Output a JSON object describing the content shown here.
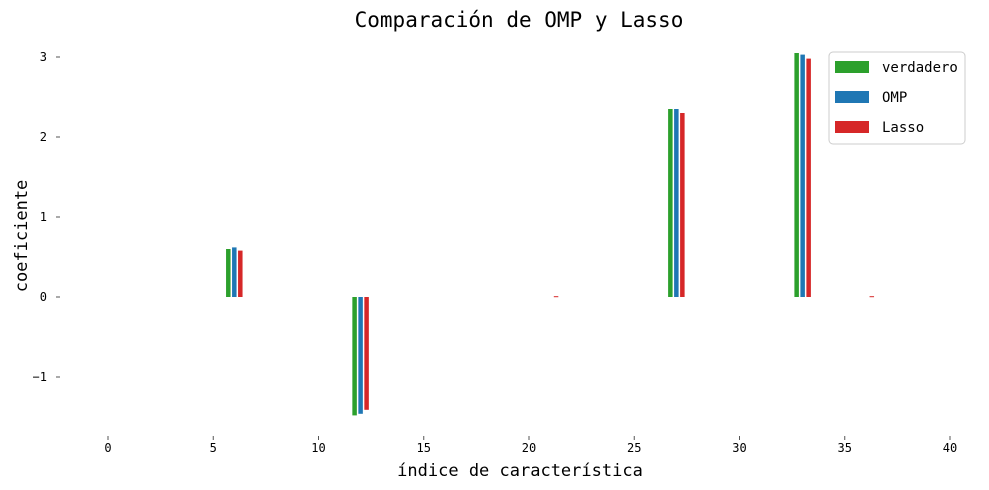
{
  "chart_data": {
    "type": "bar",
    "title": "Comparación de OMP y Lasso",
    "xlabel": "índice de característica",
    "ylabel": "coeficiente",
    "xlim": [
      -2,
      40
    ],
    "ylim": [
      -1.6,
      3.15
    ],
    "xticks": [
      0,
      5,
      10,
      15,
      20,
      25,
      30,
      35,
      40
    ],
    "yticks": [
      -1,
      0,
      1,
      2,
      3
    ],
    "ytick_labels": [
      "−1",
      "0",
      "1",
      "2",
      "3"
    ],
    "grid": false,
    "legend_position": "top-right",
    "series": [
      {
        "name": "verdadero",
        "color": "#2ca02c",
        "points": [
          {
            "x": 6,
            "y": 0.6
          },
          {
            "x": 12,
            "y": -1.48
          },
          {
            "x": 27,
            "y": 2.35
          },
          {
            "x": 33,
            "y": 3.05
          }
        ]
      },
      {
        "name": "OMP",
        "color": "#1f77b4",
        "points": [
          {
            "x": 6,
            "y": 0.62
          },
          {
            "x": 12,
            "y": -1.46
          },
          {
            "x": 27,
            "y": 2.35
          },
          {
            "x": 33,
            "y": 3.03
          }
        ]
      },
      {
        "name": "Lasso",
        "color": "#d62728",
        "points": [
          {
            "x": 6,
            "y": 0.58
          },
          {
            "x": 12,
            "y": -1.41
          },
          {
            "x": 21,
            "y": 0.01
          },
          {
            "x": 27,
            "y": 2.3
          },
          {
            "x": 33,
            "y": 2.98
          },
          {
            "x": 36,
            "y": 0.01
          }
        ]
      }
    ]
  }
}
